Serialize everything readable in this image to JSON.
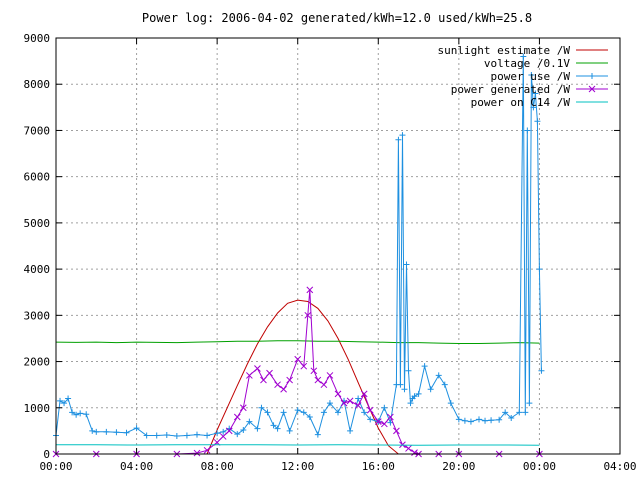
{
  "chart_data": {
    "type": "line",
    "title": "Power log: 2006-04-02 generated/kWh=12.0 used/kWh=25.8",
    "xlabel": "",
    "ylabel": "",
    "x_unit": "hours",
    "xlim": [
      0,
      28
    ],
    "ylim": [
      0,
      9000
    ],
    "grid": true,
    "legend_position": "top-right",
    "x_ticks": [
      {
        "value": 0,
        "label": "00:00"
      },
      {
        "value": 4,
        "label": "04:00"
      },
      {
        "value": 8,
        "label": "08:00"
      },
      {
        "value": 12,
        "label": "12:00"
      },
      {
        "value": 16,
        "label": "16:00"
      },
      {
        "value": 20,
        "label": "20:00"
      },
      {
        "value": 24,
        "label": "00:00"
      },
      {
        "value": 28,
        "label": "04:00"
      }
    ],
    "y_ticks": [
      {
        "value": 0,
        "label": "0"
      },
      {
        "value": 1000,
        "label": "1000"
      },
      {
        "value": 2000,
        "label": "2000"
      },
      {
        "value": 3000,
        "label": "3000"
      },
      {
        "value": 4000,
        "label": "4000"
      },
      {
        "value": 5000,
        "label": "5000"
      },
      {
        "value": 6000,
        "label": "6000"
      },
      {
        "value": 7000,
        "label": "7000"
      },
      {
        "value": 8000,
        "label": "8000"
      },
      {
        "value": 9000,
        "label": "9000"
      }
    ],
    "series": [
      {
        "name": "sunlight estimate /W",
        "color": "#c00000",
        "style": "line",
        "x": [
          7.5,
          8,
          8.5,
          9,
          9.5,
          10,
          10.5,
          11,
          11.5,
          12,
          12.5,
          13,
          13.5,
          14,
          14.5,
          15,
          15.5,
          16,
          16.5,
          17
        ],
        "y": [
          0,
          520,
          1000,
          1480,
          1950,
          2380,
          2750,
          3050,
          3260,
          3330,
          3300,
          3150,
          2880,
          2500,
          2050,
          1550,
          1050,
          560,
          180,
          0
        ]
      },
      {
        "name": "voltage /0.1V",
        "color": "#00a000",
        "style": "line",
        "x": [
          0,
          1,
          2,
          3,
          4,
          5,
          6,
          7,
          8,
          9,
          10,
          11,
          12,
          13,
          14,
          15,
          16,
          17,
          18,
          19,
          20,
          21,
          22,
          23,
          24
        ],
        "y": [
          2420,
          2415,
          2420,
          2410,
          2420,
          2415,
          2410,
          2420,
          2430,
          2440,
          2440,
          2450,
          2450,
          2440,
          2440,
          2430,
          2420,
          2410,
          2410,
          2400,
          2390,
          2390,
          2400,
          2410,
          2400
        ]
      },
      {
        "name": "power use /W",
        "color": "#1e90e0",
        "style": "linespoints-plus",
        "x": [
          0,
          0.2,
          0.4,
          0.6,
          0.8,
          1.0,
          1.2,
          1.5,
          1.8,
          2.0,
          2.5,
          3.0,
          3.5,
          4.0,
          4.5,
          5.0,
          5.5,
          6.0,
          6.5,
          7.0,
          7.5,
          8.0,
          8.3,
          8.6,
          9.0,
          9.3,
          9.6,
          10.0,
          10.2,
          10.5,
          10.8,
          11.0,
          11.3,
          11.6,
          12.0,
          12.3,
          12.6,
          13.0,
          13.3,
          13.6,
          14.0,
          14.3,
          14.6,
          15.0,
          15.3,
          15.6,
          16.0,
          16.3,
          16.6,
          16.9,
          17.0,
          17.1,
          17.2,
          17.3,
          17.4,
          17.5,
          17.6,
          17.7,
          17.8,
          18.0,
          18.3,
          18.6,
          19.0,
          19.3,
          19.6,
          20.0,
          20.3,
          20.6,
          21.0,
          21.3,
          21.6,
          22.0,
          22.3,
          22.6,
          23.0,
          23.2,
          23.3,
          23.4,
          23.5,
          23.6,
          23.7,
          23.8,
          23.9,
          24.0,
          24.1
        ],
        "y": [
          400,
          1150,
          1100,
          1200,
          900,
          850,
          880,
          860,
          500,
          480,
          480,
          470,
          460,
          560,
          400,
          400,
          410,
          390,
          400,
          420,
          400,
          450,
          480,
          550,
          430,
          520,
          700,
          550,
          1000,
          900,
          620,
          550,
          900,
          500,
          950,
          900,
          800,
          420,
          900,
          1100,
          900,
          1150,
          500,
          1200,
          900,
          750,
          700,
          1000,
          680,
          1500,
          6800,
          1500,
          6900,
          1400,
          4100,
          1800,
          1100,
          1200,
          1250,
          1300,
          1900,
          1400,
          1700,
          1500,
          1100,
          750,
          720,
          700,
          750,
          720,
          730,
          740,
          900,
          780,
          900,
          8600,
          900,
          7000,
          1100,
          8200,
          7500,
          7800,
          7200,
          4000,
          1800
        ]
      },
      {
        "name": "power generated /W",
        "color": "#a000d0",
        "style": "linespoints-cross",
        "x": [
          0,
          2,
          4,
          6,
          7,
          7.5,
          8,
          8.3,
          8.6,
          9.0,
          9.3,
          9.6,
          10.0,
          10.3,
          10.6,
          11.0,
          11.3,
          11.6,
          12.0,
          12.3,
          12.5,
          12.6,
          12.8,
          13.0,
          13.3,
          13.6,
          14.0,
          14.3,
          14.6,
          15.0,
          15.3,
          15.6,
          16.0,
          16.3,
          16.6,
          16.9,
          17.2,
          17.5,
          17.8,
          18.0,
          19.0,
          20.0,
          22.0,
          24.0
        ],
        "y": [
          0,
          0,
          0,
          0,
          20,
          80,
          250,
          380,
          500,
          800,
          1000,
          1700,
          1850,
          1600,
          1750,
          1500,
          1400,
          1600,
          2050,
          1900,
          3000,
          3550,
          1800,
          1600,
          1500,
          1700,
          1300,
          1100,
          1150,
          1050,
          1300,
          950,
          700,
          650,
          800,
          500,
          200,
          120,
          30,
          0,
          0,
          0,
          0,
          0
        ]
      },
      {
        "name": "power on C14 /W",
        "color": "#00c0c0",
        "style": "line",
        "x": [
          0,
          2,
          4,
          6,
          8,
          10,
          12,
          14,
          16,
          18,
          20,
          22,
          24
        ],
        "y": [
          200,
          200,
          195,
          200,
          200,
          200,
          195,
          200,
          195,
          190,
          195,
          195,
          190
        ]
      }
    ]
  }
}
